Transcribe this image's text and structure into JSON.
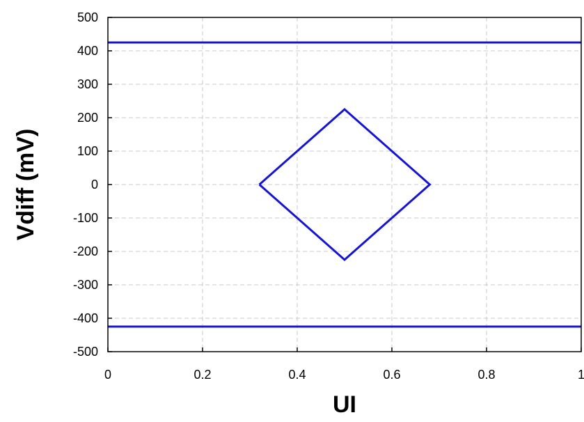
{
  "chart_data": {
    "type": "line",
    "title": "",
    "xlabel": "UI",
    "ylabel": "Vdiff (mV)",
    "xlim": [
      0,
      1
    ],
    "ylim": [
      -500,
      500
    ],
    "xticks": [
      "0",
      "0.2",
      "0.4",
      "0.6",
      "0.8",
      "1"
    ],
    "yticks": [
      "500",
      "400",
      "300",
      "200",
      "100",
      "0",
      "-100",
      "-200",
      "-300",
      "-400",
      "-500"
    ],
    "xtick_values": [
      0,
      0.2,
      0.4,
      0.6,
      0.8,
      1
    ],
    "ytick_values": [
      500,
      400,
      300,
      200,
      100,
      0,
      -100,
      -200,
      -300,
      -400,
      -500
    ],
    "grid": true,
    "line_color": "#1414d2",
    "series": [
      {
        "x": [
          0,
          1
        ],
        "y": [
          425,
          425
        ]
      },
      {
        "x": [
          0,
          1
        ],
        "y": [
          -425,
          -425
        ]
      },
      {
        "x": [
          0.32,
          0.5,
          0.68,
          0.5,
          0.32
        ],
        "y": [
          0,
          225,
          0,
          -225,
          0
        ]
      }
    ]
  }
}
